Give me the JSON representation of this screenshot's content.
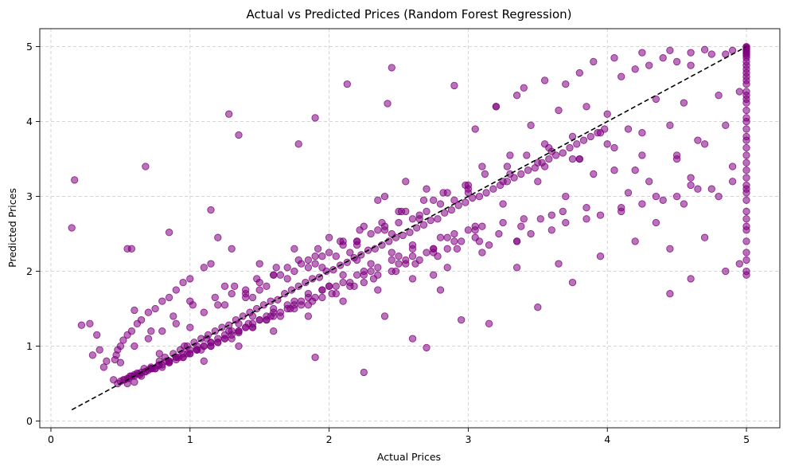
{
  "chart_data": {
    "type": "scatter",
    "title": "Actual vs Predicted Prices (Random Forest Regression)",
    "xlabel": "Actual Prices",
    "ylabel": "Predicted Prices",
    "xlim": [
      -0.08,
      5.24
    ],
    "ylim": [
      -0.09,
      5.24
    ],
    "xticks": [
      0,
      1,
      2,
      3,
      4,
      5
    ],
    "yticks": [
      0,
      1,
      2,
      3,
      4,
      5
    ],
    "grid": true,
    "point_color": "#800080",
    "reference_line": {
      "x": [
        0.15,
        5.0
      ],
      "y": [
        0.15,
        5.0
      ],
      "color": "#000000",
      "style": "dashed"
    },
    "x": [
      0.15,
      0.17,
      0.22,
      0.28,
      0.3,
      0.33,
      0.35,
      0.38,
      0.4,
      0.55,
      0.58,
      0.68,
      0.85,
      1.15,
      1.28,
      1.35,
      1.2,
      1.78,
      1.9,
      2.13,
      2.45,
      2.42,
      2.25,
      2.7,
      2.95,
      3.15,
      0.6,
      1.45,
      1.9,
      2.4,
      2.6,
      2.9,
      3.2,
      3.4,
      3.55,
      3.8,
      4.05,
      4.25,
      4.45,
      4.6,
      4.7,
      4.85,
      3.2,
      3.35,
      3.7,
      3.9,
      4.1,
      4.2,
      4.3,
      4.4,
      4.5,
      4.6,
      4.75,
      4.9,
      3.05,
      3.45,
      3.65,
      3.85,
      4.0,
      4.35,
      4.55,
      4.8,
      4.95,
      3.55,
      3.75,
      3.95,
      4.15,
      4.45,
      4.65,
      4.85,
      3.1,
      3.3,
      3.6,
      3.8,
      4.05,
      4.25,
      4.5,
      4.7,
      3.5,
      3.9,
      4.2,
      4.6,
      4.9,
      3.25,
      3.7,
      4.15,
      4.4,
      4.75,
      4.9,
      2.9,
      3.05,
      3.4,
      3.6,
      3.85,
      4.1,
      4.35,
      4.55,
      4.8,
      4.7,
      4.45,
      4.2,
      3.95,
      3.65,
      3.35,
      3.75,
      4.45,
      4.6,
      4.85,
      4.95,
      2.8,
      3.5,
      2.75,
      3.15,
      3.45,
      3.7,
      3.95,
      4.25,
      4.5,
      4.65,
      4.3,
      4.05,
      3.8,
      3.55,
      3.3,
      3.0,
      2.85,
      2.7,
      2.55,
      2.4,
      2.35,
      2.55,
      2.65,
      3.1,
      3.25,
      3.35,
      3.05,
      2.85,
      2.6,
      2.75,
      2.5,
      2.3,
      2.1,
      1.95,
      2.2,
      2.45,
      2.6,
      2.8,
      3.0,
      2.65,
      2.4,
      2.2,
      2.05,
      1.85,
      1.7,
      2.0,
      2.25,
      2.5,
      2.7,
      2.9,
      2.35,
      2.15,
      1.9,
      1.65,
      1.5,
      1.75,
      2.0,
      2.3,
      2.55,
      2.75,
      2.45,
      2.2,
      1.95,
      1.75,
      1.55,
      1.4,
      1.6,
      1.85,
      2.1,
      2.35,
      2.6,
      2.1,
      1.85,
      1.6,
      1.4,
      1.25,
      1.45,
      1.7,
      1.95,
      2.2,
      2.45,
      1.3,
      1.55,
      1.8,
      2.05,
      2.25,
      1.15,
      1.35,
      1.6,
      1.85,
      2.15,
      1.1,
      1.3,
      1.5,
      1.75,
      1.95,
      1.0,
      1.2,
      1.4,
      1.65,
      1.9,
      0.95,
      1.15,
      1.35,
      1.55,
      1.8,
      0.9,
      1.05,
      1.25,
      1.45,
      1.7,
      0.85,
      1.0,
      1.2,
      1.4,
      1.6,
      0.8,
      0.95,
      1.1,
      1.3,
      1.5,
      0.75,
      0.9,
      1.05,
      1.25,
      1.45,
      0.7,
      0.85,
      1.0,
      1.15,
      1.35,
      0.65,
      0.8,
      0.95,
      1.1,
      1.3,
      0.62,
      0.75,
      0.9,
      1.05,
      1.2,
      0.58,
      0.7,
      0.85,
      1.0,
      1.15,
      0.55,
      0.65,
      0.8,
      0.92,
      1.08,
      0.52,
      0.6,
      0.72,
      0.85,
      0.98,
      0.5,
      0.57,
      0.68,
      0.78,
      0.9,
      0.48,
      0.55,
      0.63,
      0.73,
      0.83,
      0.47,
      0.52,
      0.6,
      0.68,
      0.77,
      0.46,
      0.5,
      0.56,
      0.64,
      0.72,
      0.5,
      0.55,
      0.6,
      0.45,
      0.48,
      0.53,
      0.58,
      0.62,
      0.67,
      0.72,
      0.78,
      0.82,
      0.88,
      0.93,
      0.98,
      1.03,
      1.08,
      1.13,
      1.18,
      1.23,
      1.28,
      1.33,
      1.38,
      1.43,
      1.48,
      1.53,
      1.58,
      1.63,
      1.68,
      1.73,
      1.78,
      1.83,
      1.88,
      1.93,
      1.98,
      2.03,
      2.08,
      2.13,
      2.18,
      2.23,
      2.28,
      2.33,
      2.38,
      2.43,
      2.48,
      2.53,
      2.58,
      2.63,
      2.68,
      2.73,
      2.78,
      2.83,
      2.88,
      2.93,
      2.98,
      3.03,
      3.08,
      3.13,
      3.18,
      3.23,
      3.28,
      3.33,
      3.38,
      3.43,
      3.48,
      3.53,
      3.58,
      3.63,
      3.68,
      3.73,
      3.78,
      3.83,
      3.88,
      3.93,
      3.98,
      0.6,
      0.7,
      0.8,
      0.9,
      1.0,
      1.1,
      1.2,
      1.3,
      1.4,
      1.5,
      1.6,
      1.7,
      1.8,
      1.9,
      2.0,
      2.1,
      2.2,
      2.3,
      2.4,
      2.5,
      2.6,
      2.7,
      2.8,
      2.9,
      3.0,
      0.65,
      0.75,
      0.85,
      0.95,
      1.05,
      1.15,
      1.25,
      1.35,
      1.45,
      1.55,
      1.65,
      1.75,
      1.85,
      1.95,
      2.05,
      2.15,
      2.25,
      2.35,
      2.45,
      2.55,
      2.65,
      2.75,
      2.85,
      2.95,
      3.05,
      0.72,
      0.88,
      1.02,
      1.18,
      1.32,
      1.48,
      1.62,
      1.78,
      1.92,
      2.08,
      2.22,
      2.38,
      2.52,
      2.68,
      2.82,
      2.98,
      3.12,
      3.28,
      3.42,
      3.58,
      0.78,
      0.96,
      1.12,
      1.28,
      1.42,
      1.58,
      1.72,
      1.88,
      2.02,
      2.18,
      2.32,
      2.48,
      2.62,
      2.78,
      2.92,
      3.08,
      3.22,
      3.38,
      3.52,
      3.68,
      1.0,
      1.25,
      1.5,
      1.75,
      2.0,
      2.25,
      2.5,
      2.75,
      3.0,
      3.25,
      3.5,
      3.75,
      4.0,
      4.25,
      4.5,
      1.1,
      1.35,
      1.6,
      1.85,
      2.1,
      2.35,
      2.6,
      2.85,
      3.1,
      3.35,
      3.6,
      3.85,
      4.1,
      4.35,
      4.6,
      5.0,
      5.0,
      5.0,
      5.0,
      5.0,
      5.0,
      5.0,
      5.0,
      5.0,
      5.0,
      5.0,
      5.0,
      5.0,
      5.0,
      5.0,
      5.0,
      5.0,
      5.0,
      5.0,
      5.0,
      5.0,
      5.0,
      5.0,
      5.0,
      5.0,
      5.0,
      5.0,
      5.0,
      5.0,
      5.0,
      5.0,
      5.0,
      5.0,
      5.0,
      5.0,
      5.0,
      5.0,
      5.0,
      5.0,
      5.0,
      5.0,
      5.0,
      5.0,
      5.0,
      5.0
    ],
    "y": [
      2.58,
      3.22,
      1.28,
      1.3,
      0.88,
      1.15,
      0.95,
      0.72,
      0.8,
      2.3,
      2.3,
      3.4,
      2.52,
      2.82,
      4.1,
      3.82,
      2.45,
      3.7,
      4.05,
      4.5,
      4.72,
      4.24,
      0.65,
      0.98,
      1.35,
      1.3,
      1.48,
      1.65,
      0.85,
      1.4,
      1.1,
      4.48,
      4.2,
      4.45,
      4.55,
      4.65,
      4.85,
      4.92,
      4.95,
      4.92,
      4.96,
      4.9,
      4.2,
      4.35,
      4.5,
      4.8,
      4.6,
      4.7,
      4.75,
      4.85,
      4.8,
      4.75,
      4.9,
      4.95,
      3.9,
      3.95,
      4.15,
      4.2,
      4.1,
      4.3,
      4.25,
      4.35,
      4.4,
      3.7,
      3.8,
      3.85,
      3.9,
      3.95,
      3.75,
      3.95,
      3.4,
      3.55,
      3.6,
      3.5,
      3.65,
      3.55,
      3.5,
      3.7,
      3.2,
      3.3,
      3.35,
      3.25,
      3.4,
      2.9,
      3.0,
      3.05,
      2.95,
      3.1,
      3.2,
      2.5,
      2.6,
      2.7,
      2.75,
      2.85,
      2.8,
      2.65,
      2.9,
      3.0,
      2.45,
      2.3,
      2.4,
      2.2,
      2.1,
      2.05,
      1.85,
      1.7,
      1.9,
      2.0,
      2.1,
      1.75,
      1.52,
      1.95,
      2.35,
      2.5,
      2.65,
      2.75,
      2.9,
      3.0,
      3.1,
      3.2,
      3.35,
      3.5,
      3.4,
      3.3,
      3.15,
      3.05,
      3.1,
      3.2,
      3.0,
      2.95,
      2.8,
      2.7,
      2.6,
      2.65,
      2.4,
      2.55,
      2.45,
      2.35,
      2.3,
      2.2,
      2.1,
      1.95,
      2.05,
      2.15,
      2.25,
      2.3,
      2.45,
      2.55,
      2.75,
      2.6,
      2.4,
      2.2,
      2.05,
      1.9,
      1.8,
      2.0,
      2.1,
      2.25,
      2.4,
      2.55,
      2.25,
      2.1,
      1.95,
      1.75,
      1.6,
      1.8,
      2.0,
      2.15,
      2.3,
      2.5,
      2.35,
      2.2,
      2.0,
      1.8,
      1.65,
      1.5,
      1.7,
      1.85,
      2.05,
      2.2,
      2.4,
      2.15,
      1.95,
      1.7,
      1.55,
      1.4,
      1.55,
      1.75,
      1.95,
      2.15,
      2.3,
      1.4,
      1.6,
      1.8,
      1.95,
      2.1,
      1.3,
      1.45,
      1.65,
      1.85,
      2.05,
      1.2,
      1.35,
      1.55,
      1.75,
      1.9,
      1.1,
      1.25,
      1.45,
      1.65,
      1.85,
      1.05,
      1.2,
      1.35,
      1.55,
      1.75,
      1.0,
      1.15,
      1.3,
      1.5,
      1.65,
      0.95,
      1.05,
      1.25,
      1.4,
      1.6,
      0.9,
      1.0,
      1.15,
      1.35,
      1.5,
      0.85,
      0.95,
      1.1,
      1.25,
      1.45,
      0.8,
      0.9,
      1.05,
      1.2,
      1.35,
      0.75,
      0.85,
      1.0,
      1.1,
      1.3,
      0.7,
      0.82,
      0.95,
      1.05,
      1.2,
      0.68,
      0.78,
      0.9,
      1.0,
      1.15,
      0.65,
      0.72,
      0.85,
      0.95,
      1.08,
      0.62,
      0.7,
      0.8,
      0.9,
      1.0,
      0.6,
      0.66,
      0.75,
      0.85,
      0.95,
      0.57,
      0.63,
      0.7,
      0.8,
      0.88,
      0.55,
      0.6,
      0.66,
      0.74,
      0.82,
      0.53,
      0.57,
      0.62,
      0.7,
      0.78,
      0.5,
      0.52,
      0.55,
      0.5,
      0.55,
      0.6,
      0.64,
      0.7,
      0.72,
      0.8,
      0.85,
      0.9,
      0.95,
      1.0,
      1.05,
      1.1,
      1.15,
      1.2,
      1.25,
      1.28,
      1.35,
      1.4,
      1.45,
      1.5,
      1.55,
      1.6,
      1.62,
      1.7,
      1.75,
      1.8,
      1.85,
      1.9,
      1.92,
      2.0,
      2.02,
      2.08,
      2.12,
      2.18,
      2.22,
      2.28,
      2.3,
      2.35,
      2.4,
      2.45,
      2.48,
      2.52,
      2.58,
      2.62,
      2.68,
      2.7,
      2.78,
      2.82,
      2.88,
      2.92,
      2.98,
      3.0,
      3.05,
      3.1,
      3.15,
      3.2,
      3.25,
      3.3,
      3.35,
      3.38,
      3.45,
      3.5,
      3.55,
      3.58,
      3.65,
      3.7,
      3.75,
      3.8,
      3.85,
      3.9,
      1.0,
      1.1,
      1.2,
      1.3,
      1.25,
      1.45,
      1.55,
      1.7,
      1.75,
      1.85,
      1.95,
      2.05,
      2.1,
      2.2,
      2.25,
      2.35,
      2.4,
      2.5,
      2.55,
      2.65,
      2.7,
      2.8,
      2.9,
      2.95,
      3.05,
      0.6,
      0.7,
      0.78,
      0.85,
      0.95,
      1.0,
      1.1,
      1.18,
      1.25,
      1.35,
      1.4,
      1.5,
      1.55,
      1.65,
      1.7,
      1.8,
      1.85,
      1.95,
      2.0,
      2.1,
      2.15,
      2.25,
      2.3,
      2.4,
      2.45,
      1.2,
      1.4,
      1.55,
      1.65,
      1.8,
      1.9,
      2.05,
      2.15,
      2.3,
      2.4,
      2.55,
      2.65,
      2.8,
      2.95,
      3.05,
      3.15,
      3.3,
      3.4,
      3.55,
      3.65,
      0.9,
      1.0,
      1.1,
      1.2,
      1.3,
      1.4,
      1.5,
      1.6,
      1.7,
      1.8,
      1.9,
      2.0,
      2.1,
      2.2,
      2.3,
      2.4,
      2.5,
      2.6,
      2.7,
      2.8,
      1.6,
      1.8,
      2.1,
      2.3,
      2.45,
      2.6,
      2.8,
      2.95,
      3.1,
      3.2,
      3.45,
      3.5,
      3.7,
      3.85,
      3.55,
      0.8,
      1.0,
      1.2,
      1.4,
      1.6,
      1.75,
      1.9,
      2.05,
      2.25,
      2.4,
      2.55,
      2.7,
      2.85,
      3.0,
      3.15,
      1.95,
      2.0,
      2.15,
      2.25,
      2.4,
      2.55,
      2.7,
      2.8,
      2.95,
      3.05,
      3.15,
      3.25,
      3.35,
      3.45,
      3.55,
      3.65,
      3.75,
      3.8,
      3.9,
      4.0,
      4.05,
      4.15,
      4.25,
      4.35,
      4.4,
      4.5,
      4.55,
      4.6,
      4.65,
      4.7,
      4.75,
      4.8,
      4.85,
      4.88,
      4.9,
      4.92,
      4.94,
      4.96,
      4.97,
      4.98,
      4.99,
      5.0,
      4.3,
      3.1,
      2.6
    ]
  }
}
